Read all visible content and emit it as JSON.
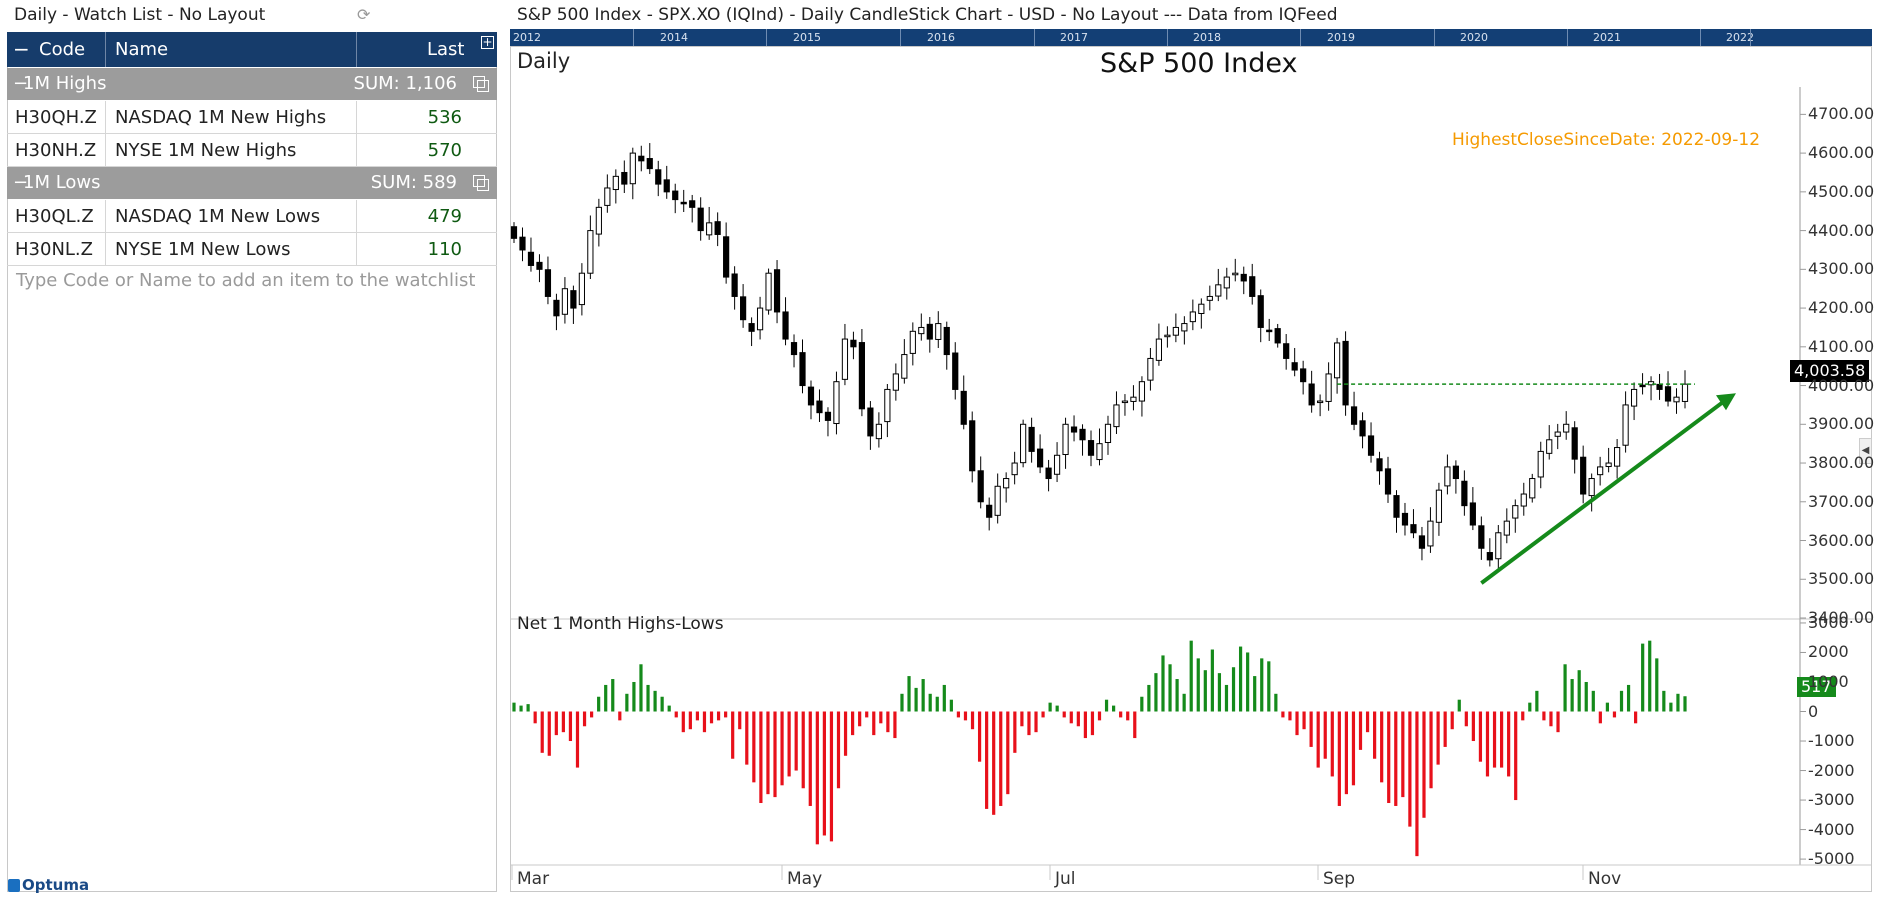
{
  "watchlist": {
    "title": "Daily - Watch List - No Layout",
    "refresh_icon": "refresh-icon",
    "columns": {
      "code": "Code",
      "name": "Name",
      "last": "Last"
    },
    "groups": [
      {
        "label": "1M Highs",
        "sum": "SUM: 1,106",
        "rows": [
          {
            "code": "H30QH.Z",
            "name": "NASDAQ 1M New Highs",
            "last": "536"
          },
          {
            "code": "H30NH.Z",
            "name": "NYSE 1M New Highs",
            "last": "570"
          }
        ]
      },
      {
        "label": "1M Lows",
        "sum": "SUM: 589",
        "rows": [
          {
            "code": "H30QL.Z",
            "name": "NASDAQ 1M New Lows",
            "last": "479"
          },
          {
            "code": "H30NL.Z",
            "name": "NYSE 1M New Lows",
            "last": "110"
          }
        ]
      }
    ],
    "placeholder": "Type Code or Name to add an item to the watchlist",
    "logo": "Optuma"
  },
  "chart": {
    "window_title": "S&P 500 Index - SPX.XO (IQInd) - Daily CandleStick Chart - USD - No Layout --- Data from IQFeed",
    "period": "Daily",
    "title": "S&P 500 Index",
    "annotation": "HighestCloseSinceDate: 2022-09-12",
    "last_value_label": "4,003.58",
    "timeline_years": [
      "2012",
      "2014",
      "2015",
      "2016",
      "2017",
      "2018",
      "2019",
      "2020",
      "2021",
      "2022"
    ],
    "sub_title": "Net 1 Month Highs-Lows",
    "sub_last_label": "517",
    "colors": {
      "up_bar": "#158a1b",
      "down_bar": "#e8101a",
      "trendline": "#158a1b",
      "annotation": "#f59a00",
      "header": "#163c6b"
    }
  },
  "chart_data": [
    {
      "type": "candlestick",
      "title": "S&P 500 Index",
      "x_ticks": [
        "Mar",
        "May",
        "Jul",
        "Sep",
        "Nov"
      ],
      "y_ticks": [
        3400,
        3500,
        3600,
        3700,
        3800,
        3900,
        4000,
        4100,
        4200,
        4300,
        4400,
        4500,
        4600,
        4700
      ],
      "ylim": [
        3400,
        4750
      ],
      "last": 4003.58,
      "highest_close_since": "2022-09-12",
      "close_series": [
        4380,
        4350,
        4310,
        4300,
        4230,
        4180,
        4250,
        4200,
        4290,
        4400,
        4460,
        4510,
        4540,
        4520,
        4600,
        4580,
        4560,
        4520,
        4500,
        4480,
        4470,
        4460,
        4400,
        4420,
        4390,
        4280,
        4230,
        4170,
        4140,
        4200,
        4290,
        4190,
        4120,
        4080,
        4000,
        3950,
        3930,
        3910,
        4010,
        4120,
        4100,
        3940,
        3870,
        3900,
        3990,
        4030,
        4080,
        4140,
        4150,
        4120,
        4160,
        4080,
        3990,
        3900,
        3780,
        3700,
        3660,
        3740,
        3760,
        3800,
        3900,
        3830,
        3790,
        3760,
        3820,
        3900,
        3880,
        3860,
        3820,
        3850,
        3900,
        3950,
        3960,
        3970,
        4010,
        4070,
        4120,
        4130,
        4150,
        4160,
        4190,
        4210,
        4230,
        4260,
        4280,
        4290,
        4270,
        4230,
        4150,
        4140,
        4110,
        4070,
        4040,
        4010,
        3950,
        3960,
        4030,
        4110,
        3950,
        3900,
        3870,
        3820,
        3780,
        3720,
        3660,
        3640,
        3620,
        3580,
        3650,
        3730,
        3790,
        3760,
        3690,
        3640,
        3580,
        3550,
        3620,
        3650,
        3690,
        3720,
        3760,
        3830,
        3860,
        3880,
        3900,
        3810,
        3720,
        3760,
        3790,
        3800,
        3840,
        3950,
        3990,
        4000,
        4010,
        3990,
        3960,
        3970,
        4003.58
      ]
    },
    {
      "type": "bar",
      "title": "Net 1 Month Highs-Lows",
      "y_ticks": [
        3000,
        2000,
        1000,
        0,
        -1000,
        -2000,
        -3000,
        -4000,
        -5000
      ],
      "ylim": [
        -5200,
        3100
      ],
      "last": 517,
      "values": [
        300,
        200,
        250,
        -400,
        -1400,
        -1500,
        -800,
        -700,
        -1000,
        -1900,
        -500,
        -200,
        500,
        900,
        1100,
        -300,
        600,
        1000,
        1600,
        900,
        700,
        500,
        200,
        -200,
        -700,
        -600,
        -300,
        -700,
        -400,
        -300,
        -200,
        -1600,
        -600,
        -1800,
        -2400,
        -3100,
        -2800,
        -2900,
        -2500,
        -2200,
        -2000,
        -2600,
        -3200,
        -4500,
        -4200,
        -4400,
        -2600,
        -1500,
        -800,
        -500,
        -200,
        -800,
        -400,
        -700,
        -900,
        600,
        1200,
        800,
        1100,
        600,
        500,
        900,
        400,
        -200,
        -300,
        -600,
        -1700,
        -3300,
        -3500,
        -3200,
        -2800,
        -1400,
        -500,
        -800,
        -700,
        -200,
        300,
        200,
        -200,
        -400,
        -500,
        -900,
        -800,
        -300,
        400,
        200,
        -200,
        -300,
        -900,
        500,
        900,
        1300,
        1900,
        1600,
        1100,
        600,
        2400,
        1800,
        1400,
        2100,
        1300,
        900,
        1500,
        2200,
        2000,
        1200,
        1800,
        1700,
        600,
        -200,
        -300,
        -800,
        -600,
        -1200,
        -1900,
        -1600,
        -2200,
        -3200,
        -2800,
        -2500,
        -1300,
        -700,
        -1600,
        -2400,
        -3100,
        -3200,
        -2900,
        -3900,
        -4900,
        -3600,
        -2600,
        -1800,
        -1200,
        -600,
        400,
        -500,
        -1000,
        -1700,
        -2200,
        -1900,
        -1900,
        -2200,
        -3000,
        -300,
        300,
        700,
        -300,
        -500,
        -700,
        1600,
        1100,
        1400,
        1000,
        700,
        -400,
        300,
        -200,
        700,
        900,
        -400,
        2300,
        2400,
        1800,
        700,
        300,
        600,
        517
      ]
    }
  ]
}
